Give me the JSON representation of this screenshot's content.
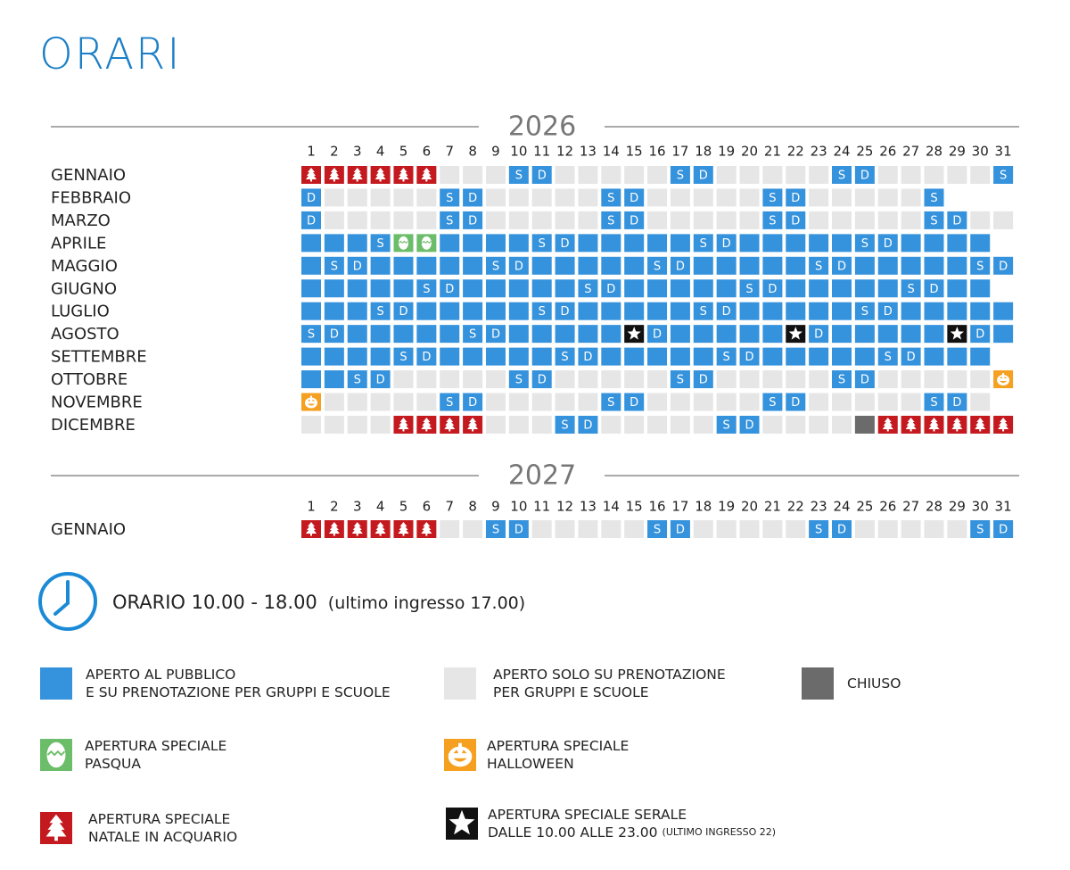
{
  "header": {
    "title": "ORARI"
  },
  "calendar": [
    {
      "year": 2026,
      "days": [
        1,
        2,
        3,
        4,
        5,
        6,
        7,
        8,
        9,
        10,
        11,
        12,
        13,
        14,
        15,
        16,
        17,
        18,
        19,
        20,
        21,
        22,
        23,
        24,
        25,
        26,
        27,
        28,
        29,
        30,
        31
      ],
      "months": [
        {
          "name": "GENNAIO",
          "cells": [
            "N",
            "N",
            "N",
            "N",
            "N",
            "N",
            "P",
            "P",
            "P",
            "S",
            "D",
            "P",
            "P",
            "P",
            "P",
            "P",
            "S",
            "D",
            "P",
            "P",
            "P",
            "P",
            "P",
            "S",
            "D",
            "P",
            "P",
            "P",
            "P",
            "P",
            "S"
          ]
        },
        {
          "name": "FEBBRAIO",
          "cells": [
            "D",
            "P",
            "P",
            "P",
            "P",
            "P",
            "S",
            "D",
            "P",
            "P",
            "P",
            "P",
            "P",
            "S",
            "D",
            "P",
            "P",
            "P",
            "P",
            "P",
            "S",
            "D",
            "P",
            "P",
            "P",
            "P",
            "P",
            "S"
          ]
        },
        {
          "name": "MARZO",
          "cells": [
            "D",
            "P",
            "P",
            "P",
            "P",
            "P",
            "S",
            "D",
            "P",
            "P",
            "P",
            "P",
            "P",
            "S",
            "D",
            "P",
            "P",
            "P",
            "P",
            "P",
            "S",
            "D",
            "P",
            "P",
            "P",
            "P",
            "P",
            "S",
            "D",
            "P",
            "P"
          ]
        },
        {
          "name": "APRILE",
          "cells": [
            "A",
            "A",
            "A",
            "S",
            "E",
            "E",
            "A",
            "A",
            "A",
            "A",
            "S",
            "D",
            "A",
            "A",
            "A",
            "A",
            "A",
            "S",
            "D",
            "A",
            "A",
            "A",
            "A",
            "A",
            "S",
            "D",
            "A",
            "A",
            "A",
            "A"
          ]
        },
        {
          "name": "MAGGIO",
          "cells": [
            "A",
            "S",
            "D",
            "A",
            "A",
            "A",
            "A",
            "A",
            "S",
            "D",
            "A",
            "A",
            "A",
            "A",
            "A",
            "S",
            "D",
            "A",
            "A",
            "A",
            "A",
            "A",
            "S",
            "D",
            "A",
            "A",
            "A",
            "A",
            "A",
            "S",
            "D"
          ]
        },
        {
          "name": "GIUGNO",
          "cells": [
            "A",
            "A",
            "A",
            "A",
            "A",
            "S",
            "D",
            "A",
            "A",
            "A",
            "A",
            "A",
            "S",
            "D",
            "A",
            "A",
            "A",
            "A",
            "A",
            "S",
            "D",
            "A",
            "A",
            "A",
            "A",
            "A",
            "S",
            "D",
            "A",
            "A"
          ]
        },
        {
          "name": "LUGLIO",
          "cells": [
            "A",
            "A",
            "A",
            "S",
            "D",
            "A",
            "A",
            "A",
            "A",
            "A",
            "S",
            "D",
            "A",
            "A",
            "A",
            "A",
            "A",
            "S",
            "D",
            "A",
            "A",
            "A",
            "A",
            "A",
            "S",
            "D",
            "A",
            "A",
            "A",
            "A",
            "A"
          ]
        },
        {
          "name": "AGOSTO",
          "cells": [
            "S",
            "D",
            "A",
            "A",
            "A",
            "A",
            "A",
            "S",
            "D",
            "A",
            "A",
            "A",
            "A",
            "A",
            "X",
            "D",
            "A",
            "A",
            "A",
            "A",
            "A",
            "X",
            "D",
            "A",
            "A",
            "A",
            "A",
            "A",
            "X",
            "D",
            "A"
          ]
        },
        {
          "name": "SETTEMBRE",
          "cells": [
            "A",
            "A",
            "A",
            "A",
            "S",
            "D",
            "A",
            "A",
            "A",
            "A",
            "A",
            "S",
            "D",
            "A",
            "A",
            "A",
            "A",
            "A",
            "S",
            "D",
            "A",
            "A",
            "A",
            "A",
            "A",
            "S",
            "D",
            "A",
            "A",
            "A"
          ]
        },
        {
          "name": "OTTOBRE",
          "cells": [
            "A",
            "A",
            "S",
            "D",
            "P",
            "P",
            "P",
            "P",
            "P",
            "S",
            "D",
            "P",
            "P",
            "P",
            "P",
            "P",
            "S",
            "D",
            "P",
            "P",
            "P",
            "P",
            "P",
            "S",
            "D",
            "P",
            "P",
            "P",
            "P",
            "P",
            "H"
          ]
        },
        {
          "name": "NOVEMBRE",
          "cells": [
            "H",
            "P",
            "P",
            "P",
            "P",
            "P",
            "S",
            "D",
            "P",
            "P",
            "P",
            "P",
            "P",
            "S",
            "D",
            "P",
            "P",
            "P",
            "P",
            "P",
            "S",
            "D",
            "P",
            "P",
            "P",
            "P",
            "P",
            "S",
            "D",
            "P"
          ]
        },
        {
          "name": "DICEMBRE",
          "cells": [
            "P",
            "P",
            "P",
            "P",
            "N",
            "N",
            "N",
            "N",
            "P",
            "P",
            "P",
            "S",
            "D",
            "P",
            "P",
            "P",
            "P",
            "P",
            "S",
            "D",
            "P",
            "P",
            "P",
            "P",
            "C",
            "N",
            "N",
            "N",
            "N",
            "N",
            "N"
          ]
        }
      ]
    },
    {
      "year": 2027,
      "days": [
        1,
        2,
        3,
        4,
        5,
        6,
        7,
        8,
        9,
        10,
        11,
        12,
        13,
        14,
        15,
        16,
        17,
        18,
        19,
        20,
        21,
        22,
        23,
        24,
        25,
        26,
        27,
        28,
        29,
        30,
        31
      ],
      "months": [
        {
          "name": "GENNAIO",
          "cells": [
            "N",
            "N",
            "N",
            "N",
            "N",
            "N",
            "P",
            "P",
            "S",
            "D",
            "P",
            "P",
            "P",
            "P",
            "P",
            "S",
            "D",
            "P",
            "P",
            "P",
            "P",
            "P",
            "S",
            "D",
            "P",
            "P",
            "P",
            "P",
            "P",
            "S",
            "D"
          ]
        }
      ]
    }
  ],
  "hours": {
    "text": "ORARIO 10.00 - 18.00",
    "note": "(ultimo ingresso 17.00)"
  },
  "legend": [
    {
      "code": "A",
      "lines": [
        "APERTO AL PUBBLICO",
        "E SU PRENOTAZIONE PER GRUPPI E SCUOLE"
      ]
    },
    {
      "code": "P",
      "lines": [
        "APERTO SOLO SU PRENOTAZIONE",
        "PER GRUPPI E SCUOLE"
      ]
    },
    {
      "code": "C",
      "lines": [
        "CHIUSO"
      ]
    },
    {
      "code": "E",
      "lines": [
        "APERTURA SPECIALE",
        "PASQUA"
      ]
    },
    {
      "code": "H",
      "lines": [
        "APERTURA SPECIALE",
        "HALLOWEEN"
      ]
    },
    {
      "code": "N",
      "lines": [
        "APERTURA SPECIALE",
        "NATALE IN ACQUARIO"
      ]
    },
    {
      "code": "X",
      "lines": [
        "APERTURA SPECIALE SERALE",
        "DALLE 10.00 ALLE 23.00"
      ],
      "note": "(ULTIMO INGRESSO 22)"
    }
  ]
}
